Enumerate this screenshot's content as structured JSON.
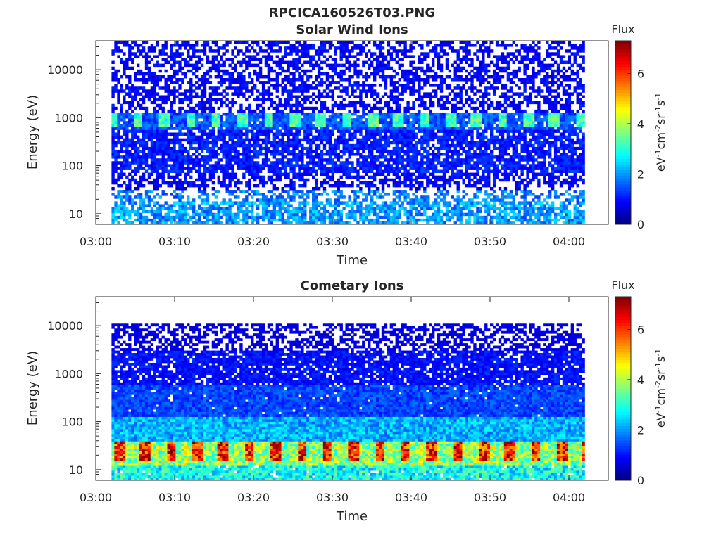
{
  "figure_title": "RPCICA160526T03.PNG",
  "colormap": [
    "#00007f",
    "#0000ff",
    "#007fff",
    "#00ffff",
    "#7fff7f",
    "#ffff00",
    "#ff7f00",
    "#ff0000",
    "#7f0000"
  ],
  "chart_data": [
    {
      "type": "heatmap",
      "title": "Solar Wind Ions",
      "xlabel": "Time",
      "ylabel": "Energy (eV)",
      "x_range": [
        "03:00",
        "04:05"
      ],
      "x_ticks": [
        "03:00",
        "03:10",
        "03:20",
        "03:30",
        "03:40",
        "03:50",
        "04:00"
      ],
      "y_scale": "log",
      "y_range": [
        6,
        40000
      ],
      "y_ticks": [
        "10",
        "100",
        "1000",
        "10000"
      ],
      "y_tick_values": [
        10,
        100,
        1000,
        10000
      ],
      "colorbar": {
        "title": "Flux",
        "label": "eV-1cm-2sr-1s-1",
        "range": [
          0,
          7.3
        ],
        "ticks": [
          "0",
          "2",
          "4",
          "6"
        ],
        "tick_values": [
          0,
          2,
          4,
          6
        ]
      },
      "data_time_range": [
        "03:02",
        "04:02"
      ],
      "bands": [
        {
          "energy_range": [
            6,
            18
          ],
          "flux": 2.0,
          "fill": 0.75
        },
        {
          "energy_range": [
            18,
            30
          ],
          "flux": 1.8,
          "fill": 0.5
        },
        {
          "energy_range": [
            30,
            38
          ],
          "flux": 0.6,
          "fill": 0.25
        },
        {
          "energy_range": [
            38,
            70
          ],
          "flux": 0.9,
          "fill": 0.6
        },
        {
          "energy_range": [
            70,
            600
          ],
          "flux": 1.1,
          "fill": 0.8
        },
        {
          "energy_range": [
            600,
            1300
          ],
          "flux": 1.5,
          "fill": 0.9
        },
        {
          "energy_range": [
            1300,
            40000
          ],
          "flux": 0.9,
          "fill": 0.55
        }
      ],
      "pulses": {
        "energy_range": [
          650,
          1300
        ],
        "flux": 3.2,
        "period_min": 3.3,
        "start_min": 2.6
      }
    },
    {
      "type": "heatmap",
      "title": "Cometary Ions",
      "xlabel": "Time",
      "ylabel": "Energy (eV)",
      "x_range": [
        "03:00",
        "04:05"
      ],
      "x_ticks": [
        "03:00",
        "03:10",
        "03:20",
        "03:30",
        "03:40",
        "03:50",
        "04:00"
      ],
      "y_scale": "log",
      "y_range": [
        6,
        40000
      ],
      "y_ticks": [
        "10",
        "100",
        "1000",
        "10000"
      ],
      "y_tick_values": [
        10,
        100,
        1000,
        10000
      ],
      "colorbar": {
        "title": "Flux",
        "label": "eV-1cm-2sr-1s-1",
        "range": [
          0,
          7.3
        ],
        "ticks": [
          "0",
          "2",
          "4",
          "6"
        ],
        "tick_values": [
          0,
          2,
          4,
          6
        ]
      },
      "data_time_range": [
        "03:02",
        "04:02"
      ],
      "bands": [
        {
          "energy_range": [
            6,
            12
          ],
          "flux": 2.8,
          "fill": 0.95
        },
        {
          "energy_range": [
            12,
            40
          ],
          "flux": 3.8,
          "fill": 1.0
        },
        {
          "energy_range": [
            40,
            120
          ],
          "flux": 2.2,
          "fill": 1.0
        },
        {
          "energy_range": [
            120,
            600
          ],
          "flux": 1.4,
          "fill": 0.97
        },
        {
          "energy_range": [
            600,
            3000
          ],
          "flux": 1.0,
          "fill": 0.85
        },
        {
          "energy_range": [
            3000,
            11000
          ],
          "flux": 0.7,
          "fill": 0.55
        }
      ],
      "pulses": {
        "energy_range": [
          15,
          40
        ],
        "flux": 6.2,
        "period_min": 3.3,
        "start_min": 3.5
      }
    }
  ]
}
